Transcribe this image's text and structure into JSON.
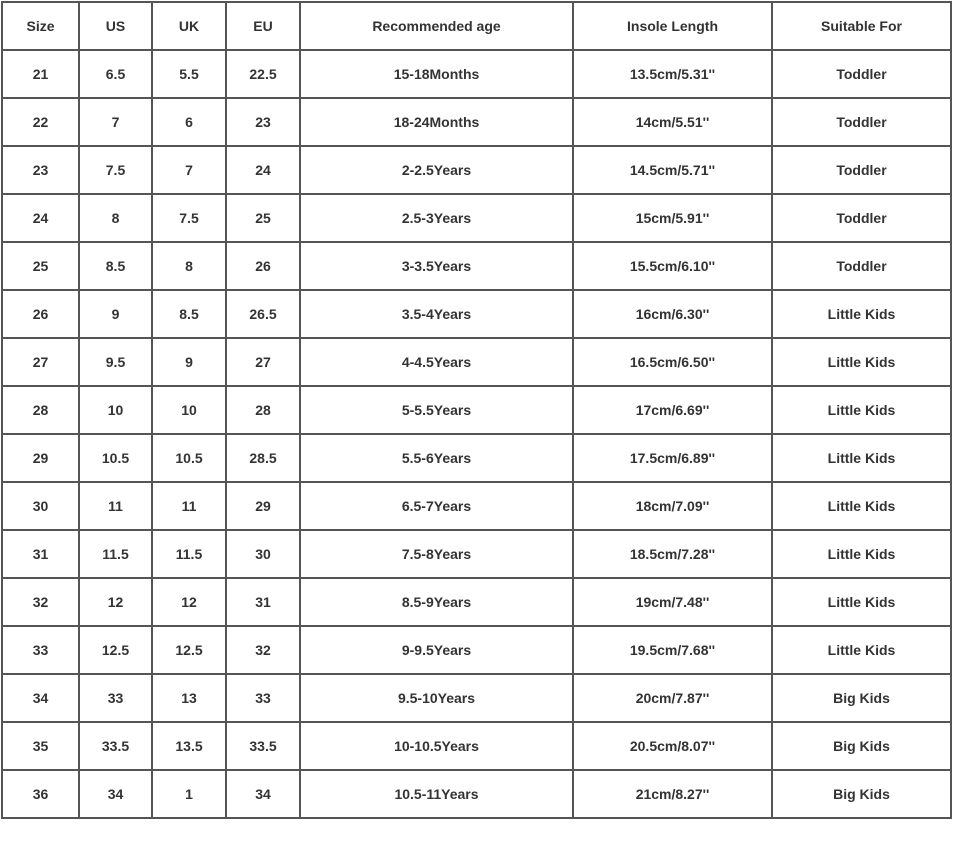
{
  "table": {
    "headers": [
      "Size",
      "US",
      "UK",
      "EU",
      "Recommended age",
      "Insole Length",
      "Suitable For"
    ],
    "rows": [
      [
        "21",
        "6.5",
        "5.5",
        "22.5",
        "15-18Months",
        "13.5cm/5.31''",
        "Toddler"
      ],
      [
        "22",
        "7",
        "6",
        "23",
        "18-24Months",
        "14cm/5.51''",
        "Toddler"
      ],
      [
        "23",
        "7.5",
        "7",
        "24",
        "2-2.5Years",
        "14.5cm/5.71''",
        "Toddler"
      ],
      [
        "24",
        "8",
        "7.5",
        "25",
        "2.5-3Years",
        "15cm/5.91''",
        "Toddler"
      ],
      [
        "25",
        "8.5",
        "8",
        "26",
        "3-3.5Years",
        "15.5cm/6.10''",
        "Toddler"
      ],
      [
        "26",
        "9",
        "8.5",
        "26.5",
        "3.5-4Years",
        "16cm/6.30''",
        "Little Kids"
      ],
      [
        "27",
        "9.5",
        "9",
        "27",
        "4-4.5Years",
        "16.5cm/6.50''",
        "Little Kids"
      ],
      [
        "28",
        "10",
        "10",
        "28",
        "5-5.5Years",
        "17cm/6.69''",
        "Little Kids"
      ],
      [
        "29",
        "10.5",
        "10.5",
        "28.5",
        "5.5-6Years",
        "17.5cm/6.89''",
        "Little Kids"
      ],
      [
        "30",
        "11",
        "11",
        "29",
        "6.5-7Years",
        "18cm/7.09''",
        "Little Kids"
      ],
      [
        "31",
        "11.5",
        "11.5",
        "30",
        "7.5-8Years",
        "18.5cm/7.28''",
        "Little Kids"
      ],
      [
        "32",
        "12",
        "12",
        "31",
        "8.5-9Years",
        "19cm/7.48''",
        "Little Kids"
      ],
      [
        "33",
        "12.5",
        "12.5",
        "32",
        "9-9.5Years",
        "19.5cm/7.68''",
        "Little Kids"
      ],
      [
        "34",
        "33",
        "13",
        "33",
        "9.5-10Years",
        "20cm/7.87''",
        "Big Kids"
      ],
      [
        "35",
        "33.5",
        "13.5",
        "33.5",
        "10-10.5Years",
        "20.5cm/8.07''",
        "Big Kids"
      ],
      [
        "36",
        "34",
        "1",
        "34",
        "10.5-11Years",
        "21cm/8.27''",
        "Big Kids"
      ]
    ]
  }
}
